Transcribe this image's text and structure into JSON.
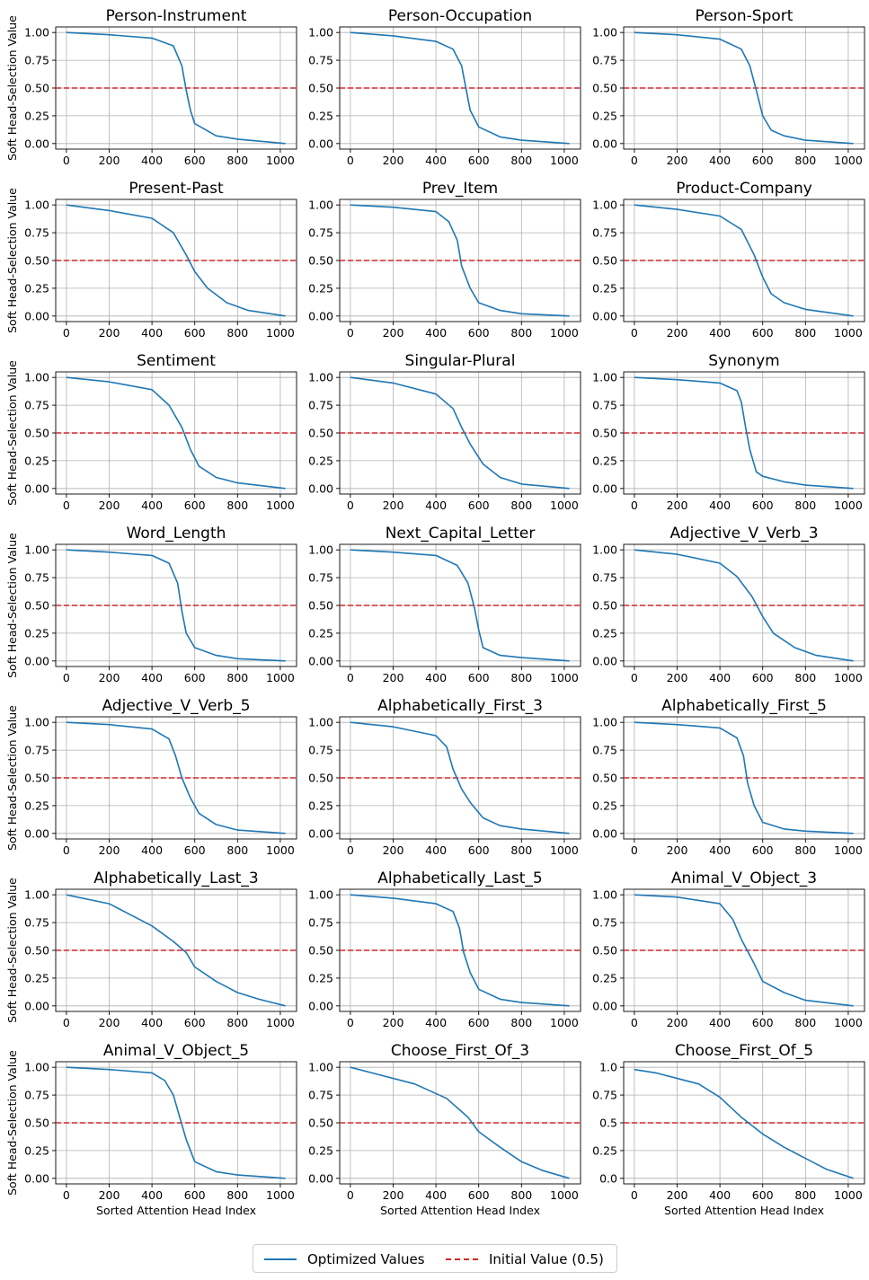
{
  "figure": {
    "legend": [
      {
        "label": "Optimized Values",
        "color": "#1f77b4",
        "style": "solid"
      },
      {
        "label": "Initial Value (0.5)",
        "color": "#d62728",
        "style": "dashed"
      }
    ]
  },
  "chart_data": {
    "type": "line",
    "layout": {
      "rows": 7,
      "cols": 3
    },
    "ylabel": "Soft Head-Selection Value",
    "xlabel": "Sorted Attention Head Index",
    "xticks": [
      "0",
      "200",
      "400",
      "600",
      "800",
      "1000"
    ],
    "yticks": [
      "0.00",
      "0.25",
      "0.50",
      "0.75",
      "1.00"
    ],
    "yticks_alt": [
      "0.0",
      "0.25",
      "0.5",
      "0.75",
      "1.0"
    ],
    "xlim": [
      0,
      1024
    ],
    "ylim": [
      0,
      1
    ],
    "reference_line": 0.5,
    "subplots": [
      {
        "title": "Person-Instrument",
        "x": [
          0,
          200,
          400,
          500,
          540,
          560,
          580,
          600,
          700,
          800,
          1024
        ],
        "y": [
          1.0,
          0.98,
          0.95,
          0.88,
          0.7,
          0.48,
          0.3,
          0.18,
          0.07,
          0.04,
          0.0
        ]
      },
      {
        "title": "Person-Occupation",
        "x": [
          0,
          200,
          400,
          480,
          520,
          545,
          560,
          600,
          700,
          800,
          1024
        ],
        "y": [
          1.0,
          0.97,
          0.92,
          0.85,
          0.7,
          0.45,
          0.3,
          0.15,
          0.06,
          0.03,
          0.0
        ]
      },
      {
        "title": "Person-Sport",
        "x": [
          0,
          200,
          400,
          500,
          540,
          570,
          600,
          640,
          700,
          800,
          1024
        ],
        "y": [
          1.0,
          0.98,
          0.94,
          0.85,
          0.7,
          0.48,
          0.25,
          0.12,
          0.07,
          0.03,
          0.0
        ]
      },
      {
        "title": "Present-Past",
        "x": [
          0,
          200,
          400,
          500,
          560,
          600,
          660,
          750,
          850,
          1024
        ],
        "y": [
          1.0,
          0.95,
          0.88,
          0.75,
          0.55,
          0.4,
          0.25,
          0.12,
          0.05,
          0.0
        ]
      },
      {
        "title": "Prev_Item",
        "x": [
          0,
          200,
          400,
          460,
          500,
          520,
          560,
          600,
          700,
          800,
          1024
        ],
        "y": [
          1.0,
          0.98,
          0.94,
          0.85,
          0.68,
          0.45,
          0.25,
          0.12,
          0.05,
          0.02,
          0.0
        ]
      },
      {
        "title": "Product-Company",
        "x": [
          0,
          200,
          400,
          500,
          560,
          600,
          640,
          700,
          800,
          1024
        ],
        "y": [
          1.0,
          0.96,
          0.9,
          0.78,
          0.55,
          0.35,
          0.2,
          0.12,
          0.06,
          0.0
        ]
      },
      {
        "title": "Sentiment",
        "x": [
          0,
          200,
          400,
          480,
          540,
          580,
          620,
          700,
          800,
          1024
        ],
        "y": [
          1.0,
          0.96,
          0.89,
          0.75,
          0.55,
          0.35,
          0.2,
          0.1,
          0.05,
          0.0
        ]
      },
      {
        "title": "Singular-Plural",
        "x": [
          0,
          200,
          400,
          480,
          520,
          560,
          620,
          700,
          800,
          1024
        ],
        "y": [
          1.0,
          0.95,
          0.85,
          0.72,
          0.55,
          0.4,
          0.22,
          0.1,
          0.04,
          0.0
        ]
      },
      {
        "title": "Synonym",
        "x": [
          0,
          200,
          400,
          480,
          500,
          520,
          540,
          570,
          600,
          700,
          800,
          1024
        ],
        "y": [
          1.0,
          0.98,
          0.95,
          0.88,
          0.78,
          0.55,
          0.35,
          0.15,
          0.11,
          0.06,
          0.03,
          0.0
        ]
      },
      {
        "title": "Word_Length",
        "x": [
          0,
          200,
          400,
          480,
          520,
          540,
          560,
          600,
          700,
          800,
          1024
        ],
        "y": [
          1.0,
          0.98,
          0.95,
          0.88,
          0.7,
          0.45,
          0.25,
          0.12,
          0.05,
          0.02,
          0.0
        ]
      },
      {
        "title": "Next_Capital_Letter",
        "x": [
          0,
          200,
          400,
          500,
          550,
          580,
          600,
          620,
          700,
          800,
          1024
        ],
        "y": [
          1.0,
          0.98,
          0.95,
          0.86,
          0.7,
          0.48,
          0.28,
          0.12,
          0.05,
          0.03,
          0.0
        ]
      },
      {
        "title": "Adjective_V_Verb_3",
        "x": [
          0,
          200,
          400,
          480,
          550,
          600,
          650,
          750,
          850,
          1024
        ],
        "y": [
          1.0,
          0.96,
          0.88,
          0.76,
          0.58,
          0.4,
          0.25,
          0.12,
          0.05,
          0.0
        ]
      },
      {
        "title": "Adjective_V_Verb_5",
        "x": [
          0,
          200,
          400,
          480,
          510,
          540,
          580,
          620,
          700,
          800,
          1024
        ],
        "y": [
          1.0,
          0.98,
          0.94,
          0.85,
          0.7,
          0.5,
          0.32,
          0.18,
          0.08,
          0.03,
          0.0
        ]
      },
      {
        "title": "Alphabetically_First_3",
        "x": [
          0,
          200,
          400,
          450,
          480,
          520,
          560,
          620,
          700,
          800,
          1024
        ],
        "y": [
          1.0,
          0.96,
          0.88,
          0.78,
          0.58,
          0.4,
          0.28,
          0.14,
          0.07,
          0.04,
          0.0
        ]
      },
      {
        "title": "Alphabetically_First_5",
        "x": [
          0,
          200,
          400,
          480,
          510,
          530,
          560,
          600,
          700,
          800,
          1024
        ],
        "y": [
          1.0,
          0.98,
          0.95,
          0.86,
          0.7,
          0.45,
          0.25,
          0.1,
          0.04,
          0.02,
          0.0
        ]
      },
      {
        "title": "Alphabetically_Last_3",
        "x": [
          0,
          200,
          400,
          500,
          560,
          600,
          700,
          800,
          900,
          1024
        ],
        "y": [
          1.0,
          0.92,
          0.72,
          0.58,
          0.48,
          0.35,
          0.22,
          0.12,
          0.06,
          0.0
        ]
      },
      {
        "title": "Alphabetically_Last_5",
        "x": [
          0,
          200,
          400,
          480,
          510,
          530,
          560,
          600,
          700,
          800,
          1024
        ],
        "y": [
          1.0,
          0.97,
          0.92,
          0.85,
          0.7,
          0.48,
          0.3,
          0.15,
          0.06,
          0.03,
          0.0
        ]
      },
      {
        "title": "Animal_V_Object_3",
        "x": [
          0,
          200,
          400,
          460,
          500,
          560,
          600,
          700,
          800,
          1024
        ],
        "y": [
          1.0,
          0.98,
          0.92,
          0.78,
          0.6,
          0.38,
          0.22,
          0.12,
          0.05,
          0.0
        ]
      },
      {
        "title": "Animal_V_Object_5",
        "x": [
          0,
          200,
          400,
          460,
          500,
          530,
          560,
          600,
          700,
          800,
          1024
        ],
        "y": [
          1.0,
          0.98,
          0.95,
          0.88,
          0.75,
          0.55,
          0.35,
          0.15,
          0.06,
          0.03,
          0.0
        ]
      },
      {
        "title": "Choose_First_Of_3",
        "x": [
          0,
          100,
          300,
          450,
          550,
          600,
          700,
          800,
          900,
          1024
        ],
        "y": [
          1.0,
          0.95,
          0.85,
          0.72,
          0.55,
          0.42,
          0.28,
          0.15,
          0.07,
          0.0
        ]
      },
      {
        "title": "Choose_First_Of_5",
        "x": [
          0,
          100,
          300,
          400,
          500,
          600,
          700,
          800,
          900,
          1024
        ],
        "y": [
          0.98,
          0.95,
          0.85,
          0.73,
          0.55,
          0.4,
          0.28,
          0.18,
          0.08,
          0.0
        ]
      }
    ]
  }
}
